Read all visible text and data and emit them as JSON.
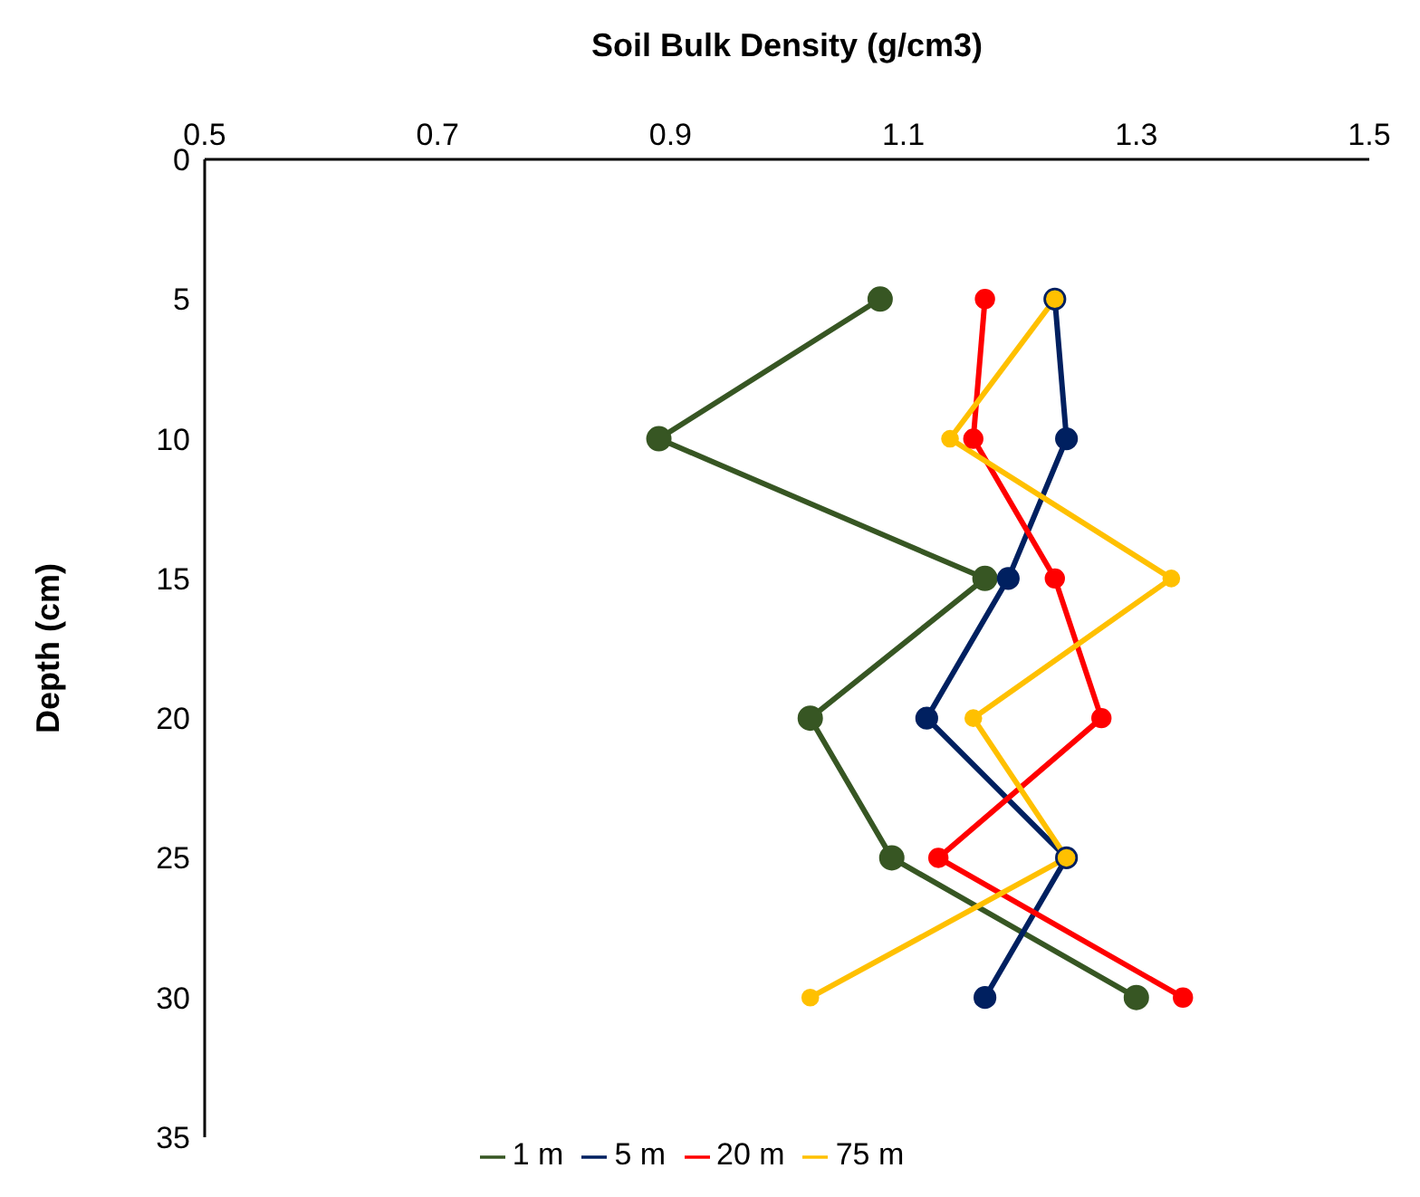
{
  "chart_data": {
    "type": "line",
    "orientation": "horizontal",
    "xlabel": "Soil Bulk Density (g/cm3)",
    "ylabel": "Depth (cm)",
    "x": [
      5,
      10,
      15,
      20,
      25,
      30
    ],
    "series": [
      {
        "name": "1 m",
        "color": "#375623",
        "values": [
          1.08,
          0.89,
          1.17,
          1.02,
          1.09,
          1.3
        ]
      },
      {
        "name": "5 m",
        "color": "#002060",
        "values": [
          1.23,
          1.24,
          1.19,
          1.12,
          1.24,
          1.17
        ]
      },
      {
        "name": "20 m",
        "color": "#ff0000",
        "values": [
          1.17,
          1.16,
          1.23,
          1.27,
          1.13,
          1.34
        ]
      },
      {
        "name": "75 m",
        "color": "#ffc000",
        "values": [
          1.23,
          1.14,
          1.33,
          1.16,
          1.24,
          1.02
        ]
      }
    ],
    "xlim": [
      0.5,
      1.5
    ],
    "xticks": [
      0.5,
      0.7,
      0.9,
      1.1,
      1.3,
      1.5
    ],
    "ylim": [
      35,
      0
    ],
    "yticks": [
      0,
      5,
      10,
      15,
      20,
      25,
      30,
      35
    ],
    "grid": false,
    "legend": "bottom",
    "marker": "circle",
    "line_style": "solid"
  }
}
